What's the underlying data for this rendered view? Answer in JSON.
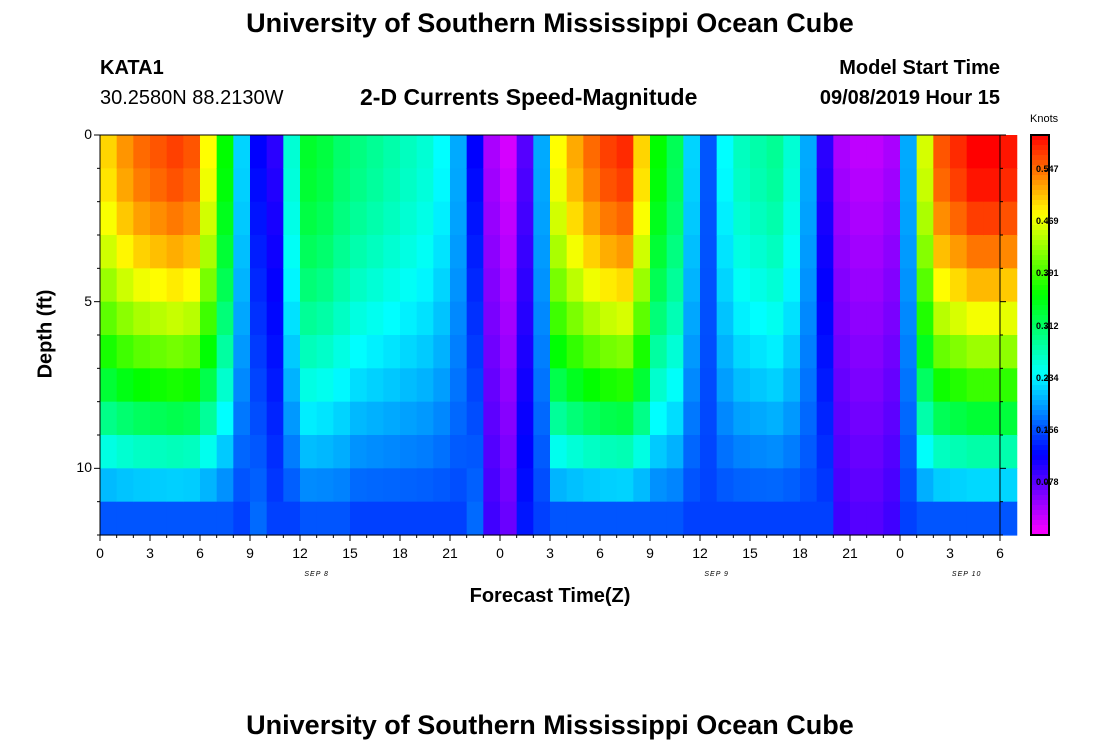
{
  "title_top": "University of Southern Mississippi Ocean Cube",
  "title_bottom": "University of Southern Mississippi Ocean Cube",
  "station": "KATA1",
  "coordinates": "30.2580N 88.2130W",
  "model_start_label": "Model Start Time",
  "model_start_value": "09/08/2019 Hour 15",
  "colorbar_unit": "Knots",
  "chart_data": {
    "type": "heatmap",
    "title": "2-D Currents Speed-Magnitude",
    "xlabel": "Forecast Time(Z)",
    "ylabel": "Depth (ft)",
    "x_tick_labels": [
      "0",
      "3",
      "6",
      "9",
      "12",
      "15",
      "18",
      "21",
      "0",
      "3",
      "6",
      "9",
      "12",
      "15",
      "18",
      "21",
      "0",
      "3",
      "6"
    ],
    "date_labels": [
      "SEP 8",
      "SEP 9",
      "SEP 10"
    ],
    "y_tick_labels": [
      "0",
      "5",
      "10"
    ],
    "x_range_hours": [
      0,
      54
    ],
    "y_range_ft": [
      0,
      12
    ],
    "colorbar_ticks": [
      "0.547",
      "0.469",
      "0.391",
      "0.312",
      "0.234",
      "0.156",
      "0.078"
    ],
    "colorbar_range_knots": [
      0,
      0.6
    ],
    "depths_ft": [
      0.5,
      1.5,
      2.5,
      3.5,
      4.5,
      5.5,
      6.5,
      7.5,
      8.5,
      9.5,
      10.5,
      11.5
    ],
    "surface_speed_knots_by_hour": [
      0.5,
      0.53,
      0.55,
      0.56,
      0.57,
      0.56,
      0.48,
      0.36,
      0.22,
      0.12,
      0.1,
      0.26,
      0.34,
      0.33,
      0.31,
      0.3,
      0.29,
      0.28,
      0.27,
      0.26,
      0.24,
      0.2,
      0.12,
      0.04,
      0.02,
      0.08,
      0.2,
      0.48,
      0.52,
      0.55,
      0.57,
      0.58,
      0.5,
      0.36,
      0.32,
      0.22,
      0.16,
      0.24,
      0.27,
      0.28,
      0.29,
      0.26,
      0.2,
      0.1,
      0.04,
      0.03,
      0.03,
      0.04,
      0.2,
      0.46,
      0.56,
      0.58,
      0.6,
      0.6,
      0.59
    ],
    "note": "Columns cover forecast hours 0-54 starting Sep 8 00Z; rows are depth bins of 1 ft from surface to 12 ft. Speeds taper toward the bottom in strong-current columns and toward cyan/blue near 12 ft."
  }
}
